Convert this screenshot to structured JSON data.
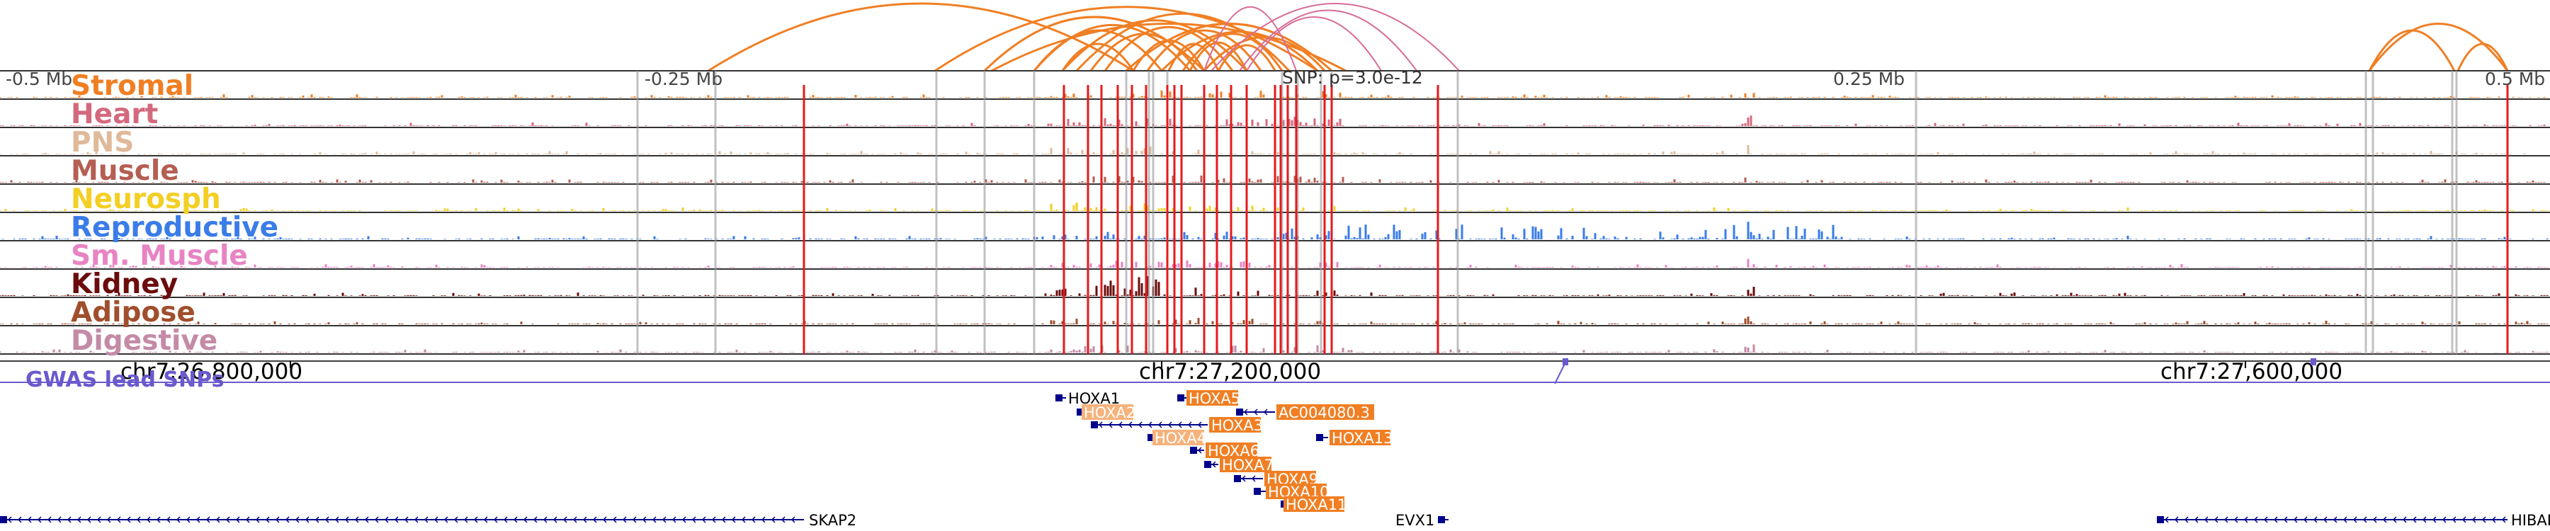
{
  "region": {
    "chrom": "chr7",
    "start": 26700000,
    "end": 27750000,
    "coord_labels": [
      "chr7:26,800,000",
      "chr7:27,200,000",
      "chr7:27,600,000"
    ],
    "distance_labels": [
      "-0.5 Mb",
      "-0.25 Mb",
      "0.25 Mb",
      "0.5 Mb"
    ],
    "snp_label": "SNP: p=3.0e-12"
  },
  "tracks": [
    {
      "label": "Stromal",
      "color": "#f07f24"
    },
    {
      "label": "Heart",
      "color": "#d4697e"
    },
    {
      "label": "PNS",
      "color": "#e0b99a"
    },
    {
      "label": "Muscle",
      "color": "#b55e52"
    },
    {
      "label": "Neurosph",
      "color": "#f3cf23"
    },
    {
      "label": "Reproductive",
      "color": "#3a7ce8"
    },
    {
      "label": "Sm. Muscle",
      "color": "#e884c4"
    },
    {
      "label": "Kidney",
      "color": "#6b0c0c"
    },
    {
      "label": "Adipose",
      "color": "#a04e2c"
    },
    {
      "label": "Digestive",
      "color": "#c48aa6"
    }
  ],
  "gwas": {
    "label": "GWAS lead SNPs",
    "color": "#6a5acd"
  },
  "loops": {
    "color_primary": "#f07f24",
    "color_secondary": "#d76c99"
  },
  "genes": [
    {
      "name": "HOXA1",
      "highlight": false
    },
    {
      "name": "HOXA2",
      "highlight": true
    },
    {
      "name": "HOXA3",
      "highlight": true
    },
    {
      "name": "HOXA4",
      "highlight": true
    },
    {
      "name": "HOXA5",
      "highlight": true
    },
    {
      "name": "HOXA6",
      "highlight": true
    },
    {
      "name": "HOXA7",
      "highlight": true
    },
    {
      "name": "HOXA9",
      "highlight": true
    },
    {
      "name": "HOXA10",
      "highlight": true
    },
    {
      "name": "HOXA11",
      "highlight": true
    },
    {
      "name": "HOXA13",
      "highlight": true
    },
    {
      "name": "AC004080.3",
      "highlight": true
    },
    {
      "name": "SKAP2",
      "highlight": false
    },
    {
      "name": "EVX1",
      "highlight": false
    },
    {
      "name": "HIBADH",
      "highlight": false
    }
  ],
  "colors": {
    "highlight_line": "#e41a1c",
    "gray_line": "#999999",
    "gene_box": "#f07f24",
    "gene_box_light": "#f6b27a",
    "gene_body": "#00008b"
  }
}
